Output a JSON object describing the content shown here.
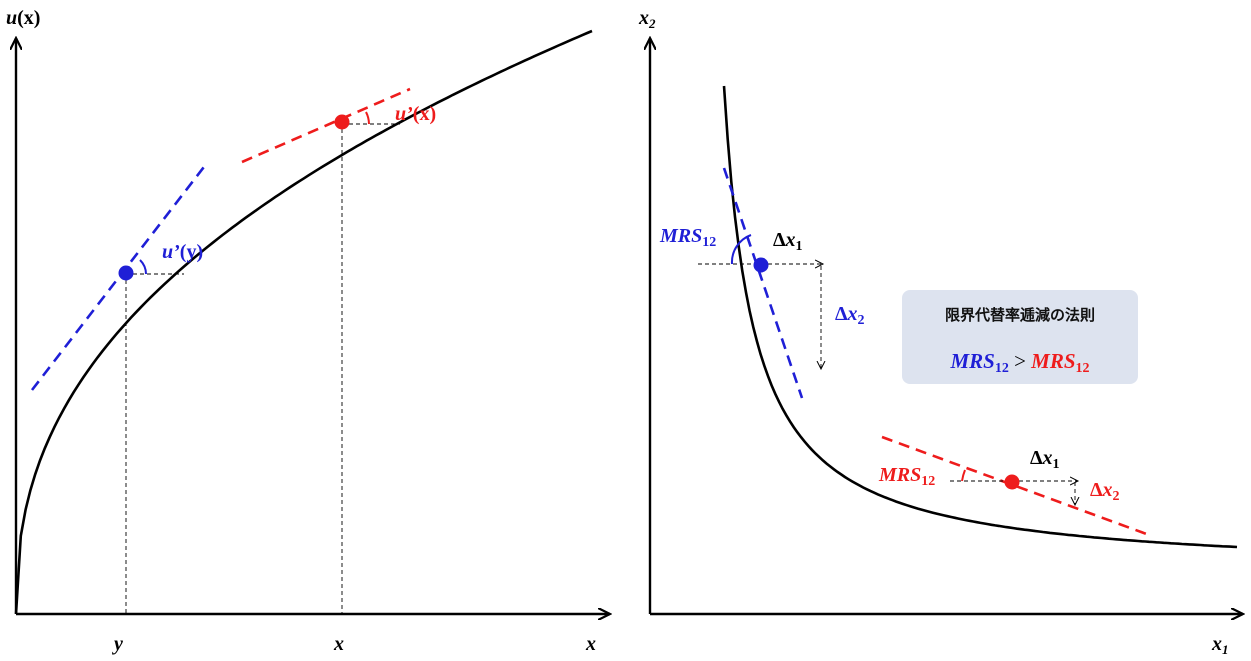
{
  "left_panel": {
    "y_axis_label": {
      "main": "u",
      "arg": "(x)"
    },
    "x_axis_label": "x",
    "tick_y": "y",
    "tick_x": "x",
    "slope_y_label": {
      "main": "u’",
      "arg": "(y)"
    },
    "slope_x_label": {
      "main": "u’",
      "arg": "(x)"
    }
  },
  "right_panel": {
    "y_axis_label": {
      "main": "x",
      "sub": "2"
    },
    "x_axis_label": {
      "main": "x",
      "sub": "1"
    },
    "upper_mrs": {
      "main": "MRS",
      "sub": "12"
    },
    "upper_dx1": {
      "delta": "Δ",
      "main": "x",
      "sub": "1"
    },
    "upper_dx2": {
      "delta": "Δ",
      "main": "x",
      "sub": "2"
    },
    "lower_mrs": {
      "main": "MRS",
      "sub": "12"
    },
    "lower_dx1": {
      "delta": "Δ",
      "main": "x",
      "sub": "1"
    },
    "lower_dx2": {
      "delta": "Δ",
      "main": "x",
      "sub": "2"
    },
    "info_box": {
      "title": "限界代替率逓減の法則",
      "left_main": "MRS",
      "left_sub": "12",
      "operator": " > ",
      "right_main": "MRS",
      "right_sub": "12"
    }
  },
  "colors": {
    "curve": "#000000",
    "blue": "#1f1fd6",
    "red": "#ee1c1c",
    "box_fill": "#dde3ef"
  }
}
